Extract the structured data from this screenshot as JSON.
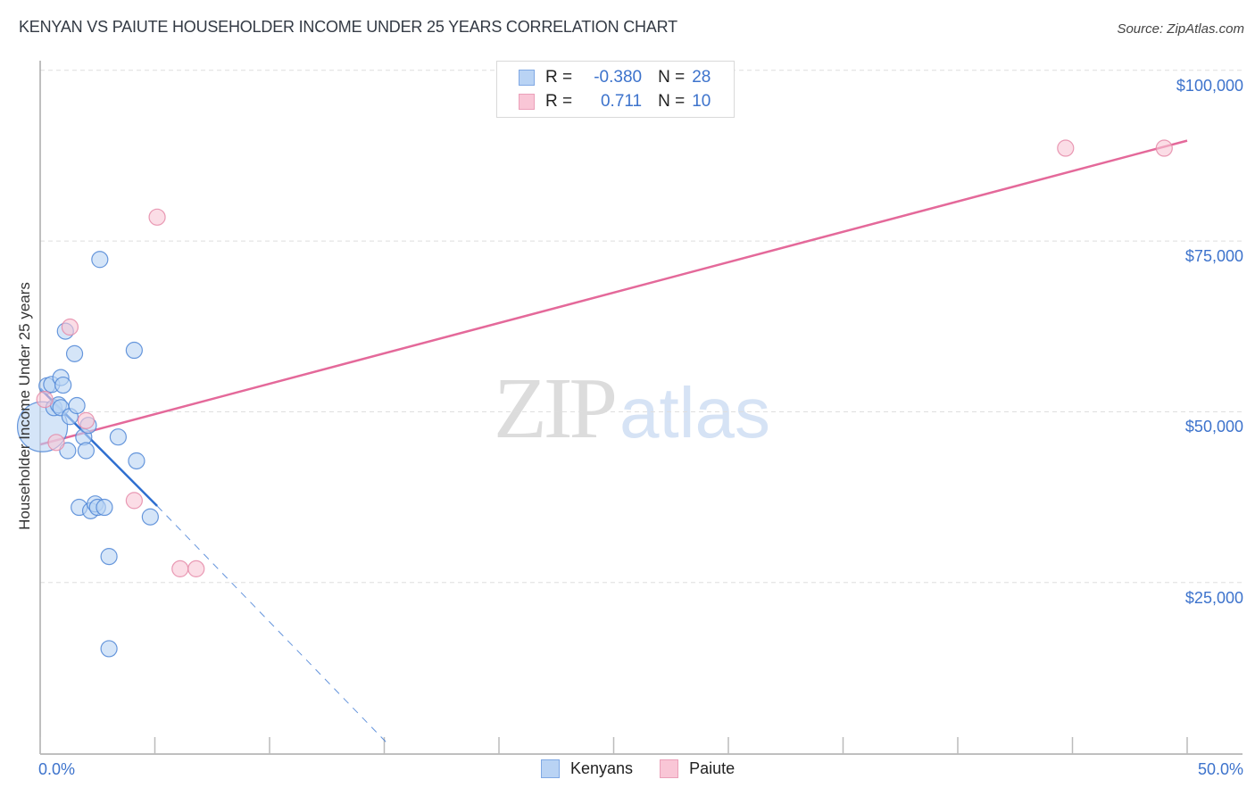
{
  "header": {
    "title": "KENYAN VS PAIUTE HOUSEHOLDER INCOME UNDER 25 YEARS CORRELATION CHART",
    "source": "Source: ZipAtlas.com"
  },
  "legend_stats": {
    "rows": [
      {
        "r_label": "R =",
        "r_value": "-0.380",
        "n_label": "N =",
        "n_value": "28"
      },
      {
        "r_label": "R =",
        "r_value": "0.711",
        "n_label": "N =",
        "n_value": "10"
      }
    ]
  },
  "legend": {
    "items": [
      {
        "label": "Kenyans"
      },
      {
        "label": "Paiute"
      }
    ]
  },
  "axes": {
    "ylabel": "Householder Income Under 25 years",
    "yticks": [
      "$100,000",
      "$75,000",
      "$50,000",
      "$25,000"
    ],
    "xtick_left": "0.0%",
    "xtick_right": "50.0%"
  },
  "watermark": {
    "zip": "ZIP",
    "atlas": "atlas"
  },
  "colors": {
    "kenyans_fill": "#b9d3f4",
    "kenyans_stroke": "#4f86d6",
    "kenyans_line": "#2f6fd0",
    "paiute_fill": "#f9c6d6",
    "paiute_stroke": "#e58aa8",
    "paiute_line": "#e4699a",
    "tick_label": "#3d73cc",
    "grid": "#dddddd"
  },
  "chart_data": {
    "type": "scatter",
    "title": "KENYAN VS PAIUTE HOUSEHOLDER INCOME UNDER 25 YEARS CORRELATION CHART",
    "xlabel": "",
    "ylabel": "Householder Income Under 25 years",
    "xlim": [
      0,
      50
    ],
    "ylim": [
      0,
      102000
    ],
    "x_unit": "%",
    "y_ticks": [
      25000,
      50000,
      75000,
      100000
    ],
    "x_ticks": [
      0,
      5,
      10,
      15,
      20,
      25,
      30,
      35,
      40,
      45,
      50
    ],
    "grid": true,
    "legend_position": "bottom-center",
    "series": [
      {
        "name": "Kenyans",
        "R": -0.38,
        "N": 28,
        "points": [
          {
            "x": 0.1,
            "y": 47800,
            "size": "large"
          },
          {
            "x": 0.3,
            "y": 53800
          },
          {
            "x": 0.5,
            "y": 54000
          },
          {
            "x": 0.6,
            "y": 50600
          },
          {
            "x": 0.8,
            "y": 51000
          },
          {
            "x": 0.9,
            "y": 50600
          },
          {
            "x": 0.9,
            "y": 55000
          },
          {
            "x": 1.0,
            "y": 53900
          },
          {
            "x": 1.1,
            "y": 61800
          },
          {
            "x": 1.2,
            "y": 44300
          },
          {
            "x": 1.3,
            "y": 49300
          },
          {
            "x": 1.5,
            "y": 58500
          },
          {
            "x": 1.6,
            "y": 50900
          },
          {
            "x": 1.9,
            "y": 46300
          },
          {
            "x": 2.0,
            "y": 44300
          },
          {
            "x": 2.1,
            "y": 48000
          },
          {
            "x": 1.7,
            "y": 36000
          },
          {
            "x": 2.2,
            "y": 35500
          },
          {
            "x": 2.4,
            "y": 36500
          },
          {
            "x": 2.5,
            "y": 36000
          },
          {
            "x": 2.8,
            "y": 36000
          },
          {
            "x": 2.6,
            "y": 72300
          },
          {
            "x": 3.0,
            "y": 28800
          },
          {
            "x": 3.0,
            "y": 15300
          },
          {
            "x": 3.4,
            "y": 46300
          },
          {
            "x": 4.1,
            "y": 59000
          },
          {
            "x": 4.2,
            "y": 42800
          },
          {
            "x": 4.8,
            "y": 34600
          }
        ],
        "trend": {
          "x0": 0,
          "y0": 53400,
          "x1": 5.1,
          "y1": 36200,
          "dashed_extension_to": {
            "x": 15.2,
            "y": 1200
          }
        }
      },
      {
        "name": "Paiute",
        "R": 0.711,
        "N": 10,
        "points": [
          {
            "x": 0.2,
            "y": 51800
          },
          {
            "x": 0.7,
            "y": 45500
          },
          {
            "x": 1.3,
            "y": 62400
          },
          {
            "x": 2.0,
            "y": 48700
          },
          {
            "x": 4.1,
            "y": 37000
          },
          {
            "x": 5.1,
            "y": 78500
          },
          {
            "x": 6.1,
            "y": 27000
          },
          {
            "x": 6.8,
            "y": 27000
          },
          {
            "x": 44.7,
            "y": 88600
          },
          {
            "x": 49.0,
            "y": 88600
          }
        ],
        "trend": {
          "x0": 0,
          "y0": 45200,
          "x1": 50,
          "y1": 89700
        }
      }
    ]
  }
}
